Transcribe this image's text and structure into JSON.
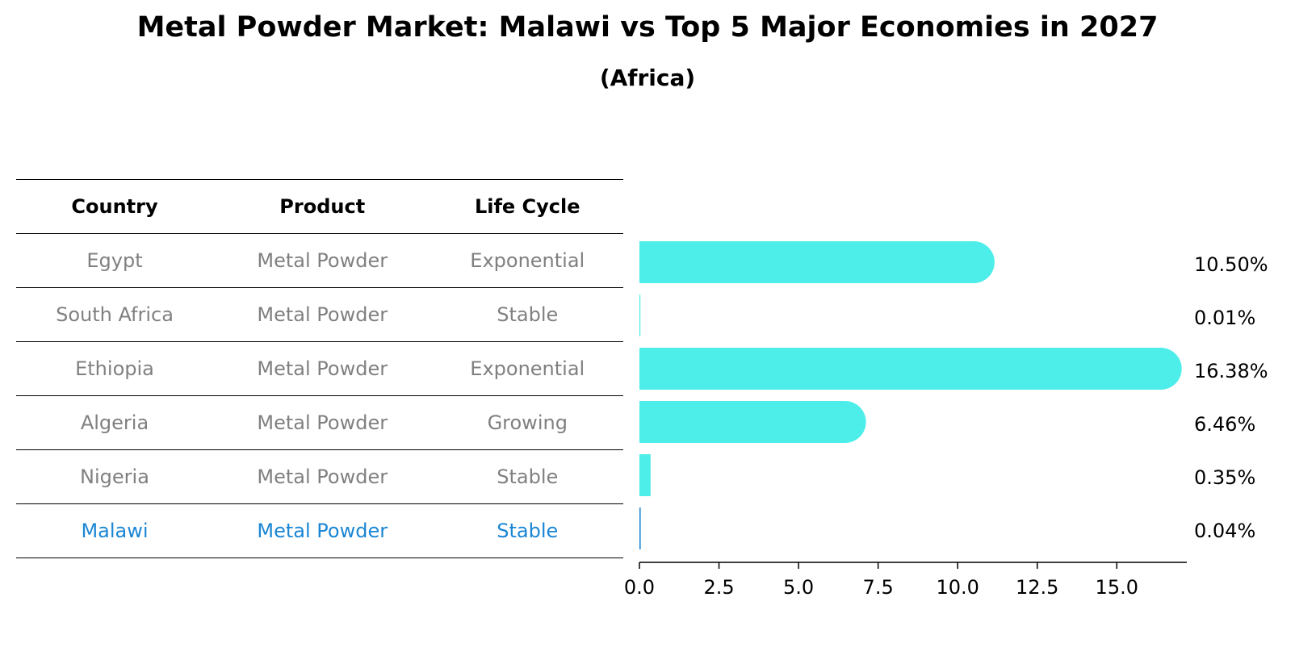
{
  "header": {
    "title": "Metal Powder Market: Malawi vs Top 5 Major Economies in 2027",
    "subtitle": "(Africa)"
  },
  "table": {
    "columns": [
      "Country",
      "Product",
      "Life Cycle"
    ],
    "rows": [
      {
        "country": "Egypt",
        "product": "Metal Powder",
        "life_cycle": "Exponential"
      },
      {
        "country": "South Africa",
        "product": "Metal Powder",
        "life_cycle": "Stable"
      },
      {
        "country": "Ethiopia",
        "product": "Metal Powder",
        "life_cycle": "Exponential"
      },
      {
        "country": "Algeria",
        "product": "Metal Powder",
        "life_cycle": "Growing"
      },
      {
        "country": "Nigeria",
        "product": "Metal Powder",
        "life_cycle": "Stable"
      },
      {
        "country": "Malawi",
        "product": "Metal Powder",
        "life_cycle": "Stable"
      }
    ],
    "highlight_row": "Malawi",
    "text_color": "#808080",
    "highlight_color": "#1a86d4"
  },
  "chart_data": {
    "type": "bar",
    "orientation": "horizontal",
    "categories": [
      "Egypt",
      "South Africa",
      "Ethiopia",
      "Algeria",
      "Nigeria",
      "Malawi"
    ],
    "values": [
      10.5,
      0.01,
      16.38,
      6.46,
      0.35,
      0.04
    ],
    "value_labels": [
      "10.50%",
      "0.01%",
      "16.38%",
      "6.46%",
      "0.35%",
      "0.04%"
    ],
    "xlim": [
      0,
      17.2
    ],
    "xticks": [
      0.0,
      2.5,
      5.0,
      7.5,
      10.0,
      12.5,
      15.0
    ],
    "xtick_labels": [
      "0.0",
      "2.5",
      "5.0",
      "7.5",
      "10.0",
      "12.5",
      "15.0"
    ],
    "xlabel": "",
    "ylabel": "",
    "grid": false,
    "bar_color": "#4deeea",
    "highlight_color": "#1a86d4",
    "highlight_category": "Malawi"
  }
}
